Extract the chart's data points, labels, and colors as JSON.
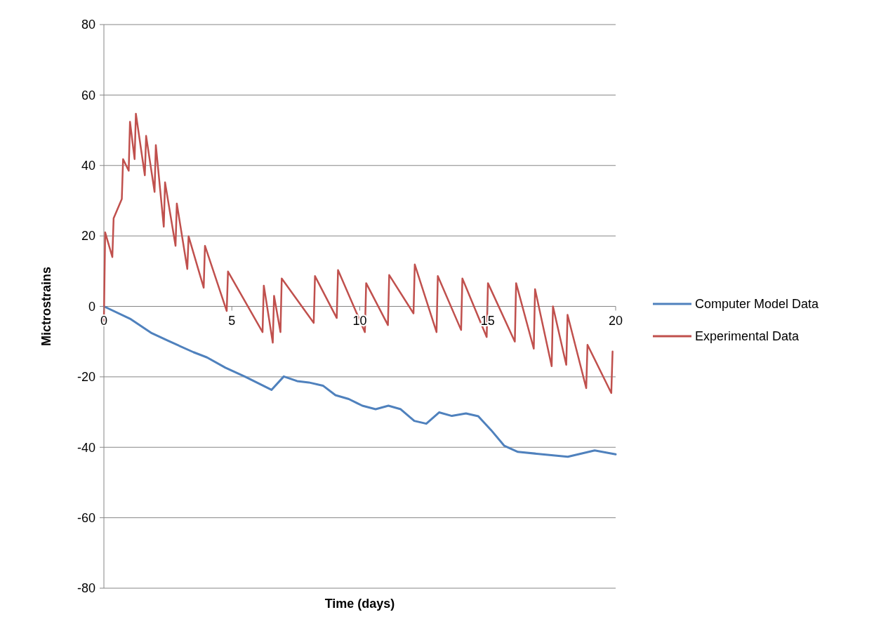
{
  "chart_data": {
    "type": "line",
    "xlabel": "Time (days)",
    "ylabel": "Mictrostrains",
    "xlim": [
      0,
      20
    ],
    "xticks": [
      0,
      5,
      10,
      15,
      20
    ],
    "ylim": [
      -80,
      80
    ],
    "yticks": [
      -80,
      -60,
      -40,
      -20,
      0,
      20,
      40,
      60,
      80
    ],
    "grid": "y",
    "legend": "right",
    "line_style": "solid",
    "marker": "none",
    "series": [
      {
        "name": "Computer Model Data",
        "color": "#4f81bd",
        "x": [
          0,
          1.02,
          1.87,
          2.52,
          3.5,
          4.03,
          4.75,
          5.53,
          6.55,
          7.03,
          7.55,
          8.01,
          8.56,
          9.05,
          9.57,
          10.1,
          10.62,
          11.12,
          11.6,
          12.13,
          12.6,
          13.1,
          13.6,
          14.15,
          14.63,
          15.13,
          15.65,
          16.18,
          18.13,
          19.18,
          20
        ],
        "values": [
          0,
          -3.5,
          -7.6,
          -9.8,
          -13,
          -14.5,
          -17.4,
          -20,
          -23.7,
          -19.9,
          -21.2,
          -21.6,
          -22.5,
          -25.2,
          -26.3,
          -28.2,
          -29.2,
          -28.2,
          -29.2,
          -32.5,
          -33.3,
          -30.1,
          -31.1,
          -30.4,
          -31.2,
          -35.1,
          -39.6,
          -41.3,
          -42.7,
          -40.9,
          -42
        ]
      },
      {
        "name": "Experimental Data",
        "color": "#c0504d",
        "x": [
          0,
          0.05,
          0.33,
          0.38,
          0.7,
          0.75,
          0.97,
          1.02,
          1.2,
          1.25,
          1.6,
          1.65,
          1.98,
          2.03,
          2.34,
          2.39,
          2.8,
          2.85,
          3.26,
          3.31,
          3.9,
          3.95,
          4.8,
          4.85,
          6.2,
          6.25,
          6.6,
          6.65,
          6.9,
          6.95,
          8.2,
          8.25,
          9.1,
          9.15,
          10.2,
          10.25,
          11.1,
          11.15,
          12.1,
          12.15,
          13.0,
          13.05,
          13.96,
          14.01,
          14.96,
          15.01,
          16.06,
          16.11,
          16.8,
          16.85,
          17.5,
          17.55,
          18.07,
          18.12,
          18.85,
          18.9,
          19.83,
          19.88
        ],
        "values": [
          -4,
          21,
          14,
          25,
          30.5,
          41.8,
          38.5,
          52.4,
          41.8,
          54.7,
          37.2,
          48.4,
          32.5,
          45.8,
          22.6,
          35.2,
          17.2,
          29.2,
          10.6,
          19.9,
          5.3,
          17.2,
          -1.3,
          9.9,
          -7.3,
          5.9,
          -10.3,
          3,
          -7.3,
          7.9,
          -4.7,
          8.6,
          -3.3,
          10.3,
          -7.3,
          6.6,
          -5.3,
          8.9,
          -2,
          11.9,
          -7.3,
          8.6,
          -6.7,
          7.9,
          -8.7,
          6.6,
          -10,
          6.6,
          -12,
          4.9,
          -17,
          0,
          -16.6,
          -2.4,
          -23.2,
          -10.9,
          -24.6,
          -12.8
        ]
      }
    ]
  }
}
